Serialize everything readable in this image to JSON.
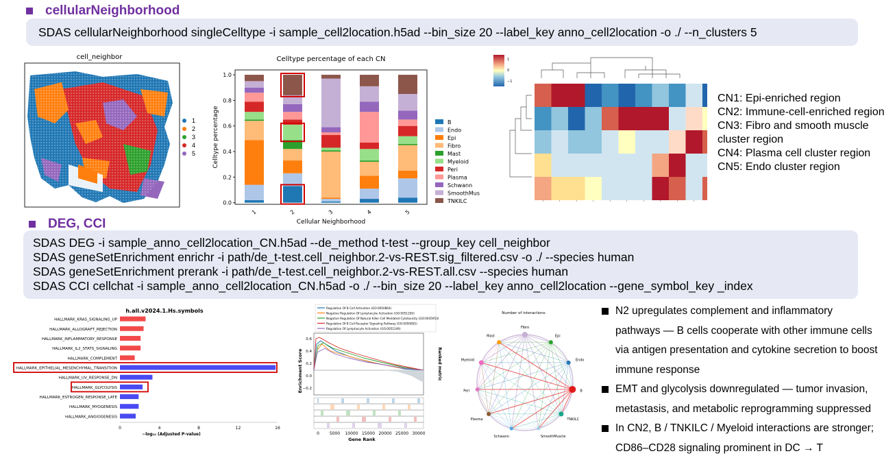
{
  "section1": {
    "title": "cellularNeighborhood",
    "command": "SDAS cellularNeighborhood singleCelltype -i sample_cell2location.h5ad --bin_size 20 --label_key anno_cell2location -o ./ --n_clusters 5"
  },
  "spatial_map": {
    "title": "cell_neighbor",
    "legend": [
      "1",
      "2",
      "3",
      "4",
      "5"
    ],
    "colors": [
      "#1f77b4",
      "#ff7f0e",
      "#2ca02c",
      "#d62728",
      "#9467bd"
    ]
  },
  "stacked_chart": {
    "title": "Celltype percentage of each CN",
    "ylabel": "Celltype percentage",
    "xlabel": "Cellular Neighborhood",
    "yticks": [
      "0.0",
      "0.2",
      "0.4",
      "0.6",
      "0.8",
      "1.0"
    ]
  },
  "chart_data": [
    {
      "type": "bar",
      "stacked": true,
      "title": "Celltype percentage of each CN",
      "xlabel": "Cellular Neighborhood",
      "ylabel": "Celltype percentage",
      "categories": [
        "1",
        "2",
        "3",
        "4",
        "5"
      ],
      "ylim": [
        0,
        1
      ],
      "legend": "right",
      "series": [
        {
          "name": "B",
          "color": "#1f77b4",
          "values": [
            0.02,
            0.13,
            0.01,
            0.03,
            0.04
          ]
        },
        {
          "name": "Endo",
          "color": "#aec7e8",
          "values": [
            0.12,
            0.1,
            0.02,
            0.08,
            0.15
          ]
        },
        {
          "name": "Epi",
          "color": "#ff7f0e",
          "values": [
            0.35,
            0.1,
            0.01,
            0.1,
            0.06
          ]
        },
        {
          "name": "Fibro",
          "color": "#ffbb78",
          "values": [
            0.15,
            0.09,
            0.36,
            0.11,
            0.2
          ]
        },
        {
          "name": "Mast",
          "color": "#2ca02c",
          "values": [
            0.01,
            0.07,
            0.01,
            0.01,
            0.01
          ]
        },
        {
          "name": "Myeloid",
          "color": "#98df8a",
          "values": [
            0.06,
            0.12,
            0.02,
            0.09,
            0.06
          ]
        },
        {
          "name": "Peri",
          "color": "#d62728",
          "values": [
            0.08,
            0.04,
            0.1,
            0.05,
            0.08
          ]
        },
        {
          "name": "Plasma",
          "color": "#ff9896",
          "values": [
            0.07,
            0.06,
            0.02,
            0.24,
            0.05
          ]
        },
        {
          "name": "Schwann",
          "color": "#9467bd",
          "values": [
            0.04,
            0.06,
            0.04,
            0.08,
            0.07
          ]
        },
        {
          "name": "SmoothMuscle",
          "color": "#c5b0d5",
          "values": [
            0.05,
            0.07,
            0.38,
            0.12,
            0.13
          ]
        },
        {
          "name": "TNKILC",
          "color": "#8c564b",
          "values": [
            0.05,
            0.16,
            0.03,
            0.09,
            0.15
          ]
        }
      ]
    },
    {
      "type": "bar",
      "orientation": "horizontal",
      "title": "h.all.v2024.1.Hs.symbols",
      "xlabel": "−log₁₀ (Adjusted P-value)",
      "xlim": [
        0,
        16
      ],
      "xticks": [
        "0",
        "4",
        "8",
        "12",
        "16"
      ],
      "categories": [
        "HALLMARK_KRAS_SIGNALING_UP",
        "HALLMARK_ALLOGRAFT_REJECTION",
        "HALLMARK_INFLAMMATORY_RESPONSE",
        "HALLMARK_IL2_STATS_SIGNALING",
        "HALLMARK_COMPLEMENT",
        "HALLMARK_EPITHELIAL_MESENCHYMAL_TRANSITION",
        "HALLMARK_UV_RESPONSE_DN",
        "HALLMARK_GLYCOLYSIS",
        "HALLMARK_ESTROGEN_RESPONSE_LATE",
        "HALLMARK_MYOGENESIS",
        "HALLMARK_ANGIOGENESIS"
      ],
      "values": [
        2.6,
        2.4,
        2.1,
        2.1,
        1.5,
        15.8,
        3.3,
        2.3,
        1.9,
        1.9,
        1.6
      ],
      "colors": [
        "#f24a4a",
        "#f24a4a",
        "#f24a4a",
        "#f24a4a",
        "#f24a4a",
        "#4a4af2",
        "#4a4af2",
        "#4a4af2",
        "#4a4af2",
        "#4a4af2",
        "#4a4af2"
      ]
    }
  ],
  "heatmap": {
    "colorbar_ticks": [
      "1",
      "0",
      "−1"
    ]
  },
  "cn_descriptions": [
    "CN1: Epi-enriched region",
    "CN2: Immune-cell-enriched region",
    "CN3: Fibro and smooth muscle",
    "cluster region",
    "CN4: Plasma cell cluster region",
    "CN5: Endo cluster region"
  ],
  "section2": {
    "title": "DEG, CCI",
    "commands": [
      "SDAS DEG -i sample_anno_cell2location_CN.h5ad --de_method t-test --group_key cell_neighbor",
      "SDAS geneSetEnrichment enrichr -i path/de_t-test.cell_neighbor.2-vs-REST.sig_filtered.csv -o ./ --species human",
      "SDAS geneSetEnrichment prerank  -i path/de_t-test.cell_neighbor.2-vs-REST.all.csv --species human",
      "SDAS CCI cellchat -i sample_anno_cell2location_CN.h5ad -o ./ --bin_size 20 --label_key anno_cell2location --gene_symbol_key _index"
    ]
  },
  "gsea": {
    "legend": [
      "Regulation Of B Cell Activation (GO:0050864)",
      "Negative Regulation Of Lymphocyte Activation (GO:0051250)",
      "Negative Regulation Of Natural Killer Cell Mediated Cytotoxicity (GO:0045953)",
      "Regulation Of B Cell Receptor Signaling Pathway (GO:0050855)",
      "Regulation Of Lymphocyte Activation (GO:0051249)"
    ],
    "legend_colors": [
      "#1f77b4",
      "#ff7f0e",
      "#2ca02c",
      "#d62728",
      "#9467bd"
    ],
    "ylabel": "Enrichment Score",
    "y2label": "Ranked metric",
    "xlabel": "Gene Rank",
    "yticks": [
      "0.6",
      "0.4",
      "0.2",
      "0.0",
      "−0.2"
    ],
    "xticks": [
      "0",
      "5000",
      "10000",
      "15000",
      "20000",
      "25000",
      "30000"
    ]
  },
  "network": {
    "title": "Number of interactions",
    "nodes": [
      {
        "name": "Fibro",
        "color": "#c5b0d5"
      },
      {
        "name": "Epi",
        "color": "#2ca02c"
      },
      {
        "name": "Endo",
        "color": "#1f77b4"
      },
      {
        "name": "B",
        "color": "#e31a1c"
      },
      {
        "name": "TNKILC",
        "color": "#17a589"
      },
      {
        "name": "SmoothMuscle",
        "color": "#a6cee3"
      },
      {
        "name": "Schwann",
        "color": "#4aa3df"
      },
      {
        "name": "Plasma",
        "color": "#8b5a2b"
      },
      {
        "name": "Peri",
        "color": "#e377c2"
      },
      {
        "name": "Myeloid",
        "color": "#f06bc0"
      },
      {
        "name": "Mast",
        "color": "#ff9900"
      }
    ]
  },
  "findings": [
    "N2 upregulates complement and inflammatory",
    "pathways — B cells cooperate with other immune cells",
    "via antigen presentation and cytokine secretion to boost",
    "immune response",
    "EMT and glycolysis downregulated — tumor invasion,",
    "metastasis, and metabolic reprogramming suppressed",
    "In CN2, B / TNKILC / Myeloid interactions are stronger;",
    "CD86–CD28 signaling prominent in DC → T"
  ]
}
